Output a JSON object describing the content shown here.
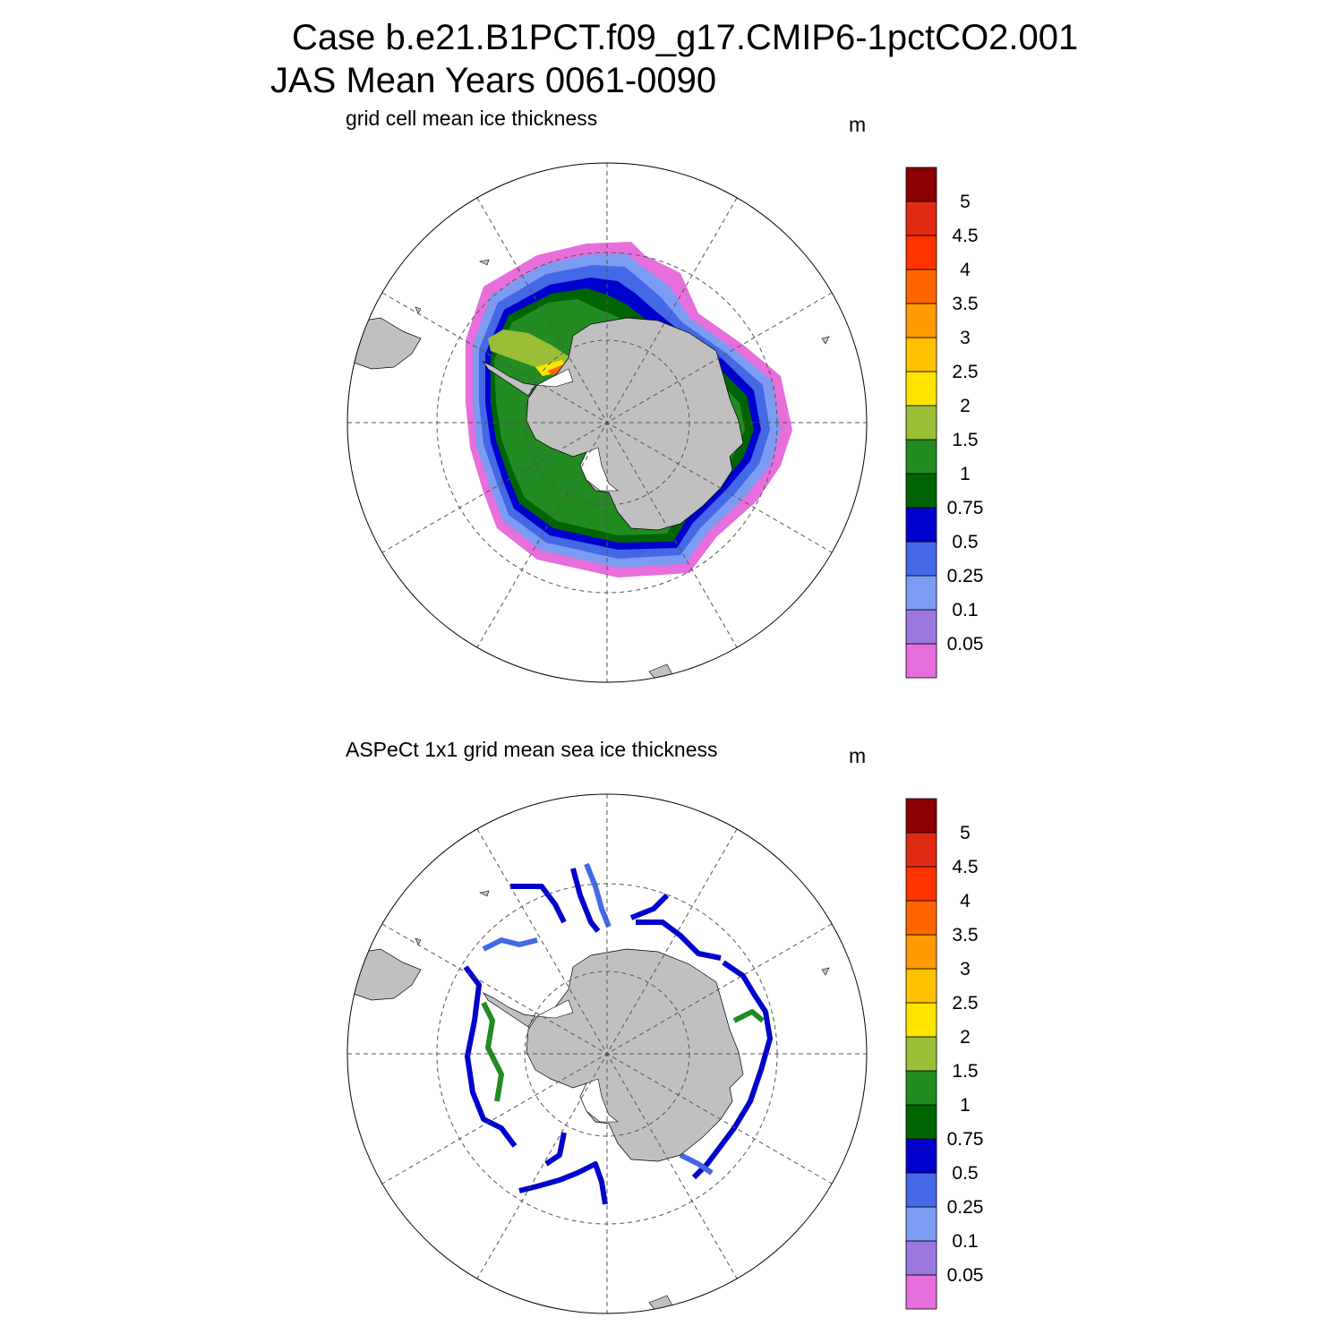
{
  "title_line1": "Case b.e21.B1PCT.f09_g17.CMIP6-1pctCO2.001",
  "title_line2": "JAS Mean   Years 0061-0090",
  "panels": [
    {
      "subtitle": "grid cell mean ice thickness",
      "units": "m"
    },
    {
      "subtitle": "ASPeCt 1x1 grid mean sea ice thickness",
      "units": "m"
    }
  ],
  "legend": {
    "labels": [
      "0.05",
      "0.1",
      "0.25",
      "0.5",
      "0.75",
      "1",
      "1.5",
      "2",
      "2.5",
      "3",
      "3.5",
      "4",
      "4.5",
      "5"
    ],
    "colors": [
      "#e66fdc",
      "#9a78e0",
      "#7b9cf2",
      "#4468e6",
      "#0000cd",
      "#006400",
      "#228b22",
      "#9abf36",
      "#ffe400",
      "#ffc100",
      "#ff9a00",
      "#ff6600",
      "#ff3300",
      "#e02b14",
      "#8b0000"
    ]
  },
  "colors": {
    "land": "#c0c0c0",
    "grid": "#555555",
    "background": "#ffffff"
  }
}
